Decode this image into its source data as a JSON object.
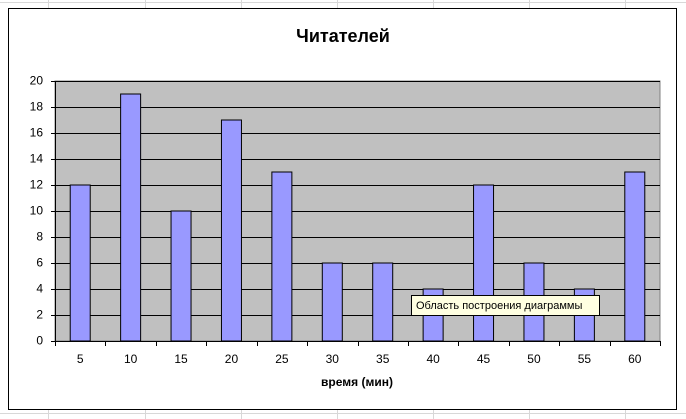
{
  "chart_data": {
    "type": "bar",
    "title": "Читателей",
    "x_label": "время (мин)",
    "categories": [
      "5",
      "10",
      "15",
      "20",
      "25",
      "30",
      "35",
      "40",
      "45",
      "50",
      "55",
      "60"
    ],
    "values": [
      12,
      19,
      10,
      17,
      13,
      6,
      6,
      4,
      12,
      6,
      4,
      13
    ],
    "color": "#9999ff",
    "ylim": [
      0,
      20
    ],
    "yticks": [
      0,
      2,
      4,
      6,
      8,
      10,
      12,
      14,
      16,
      18,
      20
    ],
    "grid": true,
    "plot_background": "#c0c0c0",
    "tooltip": "Область построения диаграммы"
  }
}
